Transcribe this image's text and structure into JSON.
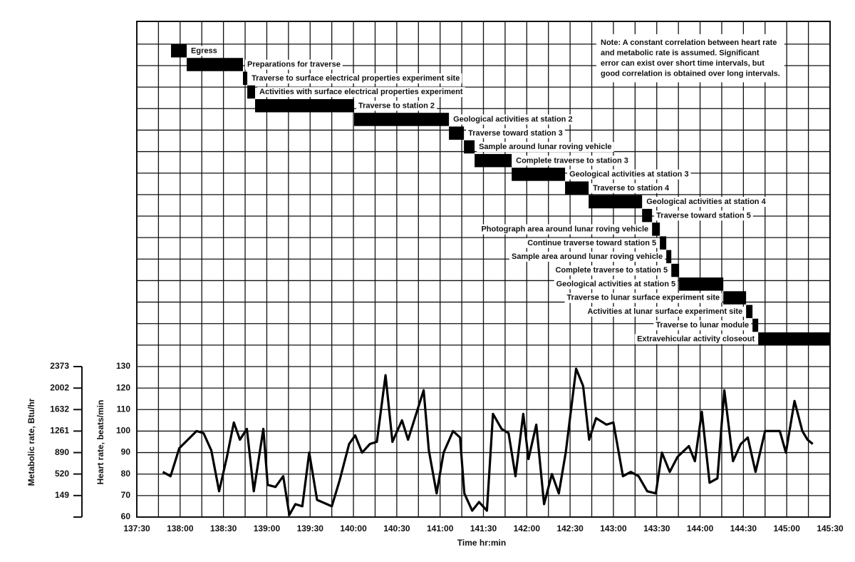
{
  "chart_data": [
    {
      "type": "gantt",
      "tasks": [
        {
          "name": "Egress",
          "start": 137.895,
          "end": 138.076
        },
        {
          "name": "Preparations for traverse",
          "start": 138.076,
          "end": 138.725
        },
        {
          "name": "Traverse to surface electrical properties experiment site",
          "start": 138.725,
          "end": 138.775
        },
        {
          "name": "Activities with surface electrical properties experiment",
          "start": 138.775,
          "end": 138.865
        },
        {
          "name": "Traverse to station 2",
          "start": 138.865,
          "end": 140.008
        },
        {
          "name": "Geological activities at station 2",
          "start": 140.008,
          "end": 141.102
        },
        {
          "name": "Traverse toward station 3",
          "start": 141.102,
          "end": 141.275
        },
        {
          "name": "Sample around lunar roving vehicle",
          "start": 141.275,
          "end": 141.398
        },
        {
          "name": "Complete traverse to station 3",
          "start": 141.398,
          "end": 141.826
        },
        {
          "name": "Geological activities at station 3",
          "start": 141.826,
          "end": 142.442
        },
        {
          "name": "Traverse to station 4",
          "start": 142.442,
          "end": 142.714
        },
        {
          "name": "Geological activities at station 4",
          "start": 142.714,
          "end": 143.331
        },
        {
          "name": "Traverse toward station 5",
          "start": 143.331,
          "end": 143.446
        },
        {
          "name": "Photograph area around lunar roving vehicle",
          "start": 143.446,
          "end": 143.536
        },
        {
          "name": "Continue traverse toward station 5",
          "start": 143.536,
          "end": 143.61
        },
        {
          "name": "Sample area around lunar roving vehicle",
          "start": 143.61,
          "end": 143.668
        },
        {
          "name": "Complete traverse to station 5",
          "start": 143.668,
          "end": 143.758
        },
        {
          "name": "Geological activities at station 5",
          "start": 143.758,
          "end": 144.268
        },
        {
          "name": "Traverse to lunar surface experiment site",
          "start": 144.268,
          "end": 144.531
        },
        {
          "name": "Activities at lunar surface experiment site",
          "start": 144.531,
          "end": 144.605
        },
        {
          "name": "Traverse to lunar module",
          "start": 144.605,
          "end": 144.671
        },
        {
          "name": "Extravehicular activity closeout",
          "start": 144.671,
          "end": 145.5
        }
      ],
      "color": "#000000",
      "note": [
        "Note: A constant correlation between heart rate",
        "and metabolic rate is assumed.  Significant",
        "error can exist over short time intervals, but",
        "good correlation is obtained over long intervals."
      ]
    },
    {
      "type": "line",
      "xlabel": "Time hr:min",
      "ylabel": "Heart rate, beats/min",
      "y2label": "Metabolic rate, Btu/hr",
      "color": "#000000",
      "grid": true,
      "xlim": [
        137.5,
        145.5
      ],
      "xticks": [
        {
          "value": 137.5,
          "label": "137:30"
        },
        {
          "value": 138,
          "label": "138:00"
        },
        {
          "value": 138.5,
          "label": "138:30"
        },
        {
          "value": 139,
          "label": "139:00"
        },
        {
          "value": 139.5,
          "label": "139:30"
        },
        {
          "value": 140,
          "label": "140:00"
        },
        {
          "value": 140.5,
          "label": "140:30"
        },
        {
          "value": 141,
          "label": "141:00"
        },
        {
          "value": 141.5,
          "label": "141:30"
        },
        {
          "value": 142,
          "label": "142:00"
        },
        {
          "value": 142.5,
          "label": "142:30"
        },
        {
          "value": 143,
          "label": "143:00"
        },
        {
          "value": 143.5,
          "label": "143:30"
        },
        {
          "value": 144,
          "label": "144:00"
        },
        {
          "value": 144.5,
          "label": "144:30"
        },
        {
          "value": 145,
          "label": "145:00"
        },
        {
          "value": 145.5,
          "label": "145:30"
        }
      ],
      "ylim": [
        60,
        130
      ],
      "yticks": [
        60,
        70,
        80,
        90,
        100,
        110,
        120,
        130
      ],
      "y2lim": [
        -222,
        2373
      ],
      "y2ticks": [
        149,
        520,
        890,
        1261,
        1632,
        2002,
        2373
      ],
      "x": [
        137.8,
        137.89,
        137.99,
        138.19,
        138.27,
        138.36,
        138.45,
        138.54,
        138.62,
        138.69,
        138.77,
        138.85,
        138.96,
        139.01,
        139.1,
        139.19,
        139.26,
        139.33,
        139.41,
        139.49,
        139.58,
        139.75,
        139.84,
        139.95,
        140.02,
        140.1,
        140.19,
        140.27,
        140.37,
        140.45,
        140.56,
        140.63,
        140.81,
        140.87,
        140.96,
        141.04,
        141.15,
        141.23,
        141.28,
        141.37,
        141.45,
        141.54,
        141.61,
        141.71,
        141.79,
        141.87,
        141.96,
        142.02,
        142.11,
        142.2,
        142.29,
        142.37,
        142.45,
        142.57,
        142.65,
        142.72,
        142.8,
        142.92,
        143.0,
        143.11,
        143.2,
        143.29,
        143.39,
        143.49,
        143.56,
        143.65,
        143.74,
        143.87,
        143.94,
        144.02,
        144.11,
        144.2,
        144.28,
        144.38,
        144.47,
        144.55,
        144.64,
        144.75,
        144.92,
        144.99,
        145.09,
        145.18,
        145.24,
        145.3
      ],
      "values": [
        81,
        79,
        92,
        100,
        99,
        91,
        72,
        88,
        104,
        96,
        101,
        72,
        101,
        75,
        74,
        79,
        61,
        66,
        65,
        90,
        68,
        65,
        77,
        94,
        98,
        90,
        94,
        95,
        126,
        95,
        105,
        96,
        119,
        91,
        71,
        90,
        100,
        97,
        71,
        63,
        67,
        63,
        108,
        101,
        99,
        79,
        108,
        87,
        103,
        66,
        80,
        71,
        90,
        129,
        121,
        96,
        106,
        103,
        104,
        79,
        81,
        79,
        72,
        71,
        90,
        81,
        88,
        93,
        86,
        109,
        76,
        78,
        119,
        86,
        94,
        97,
        81,
        100,
        100,
        90,
        114,
        100,
        96,
        94
      ]
    }
  ]
}
